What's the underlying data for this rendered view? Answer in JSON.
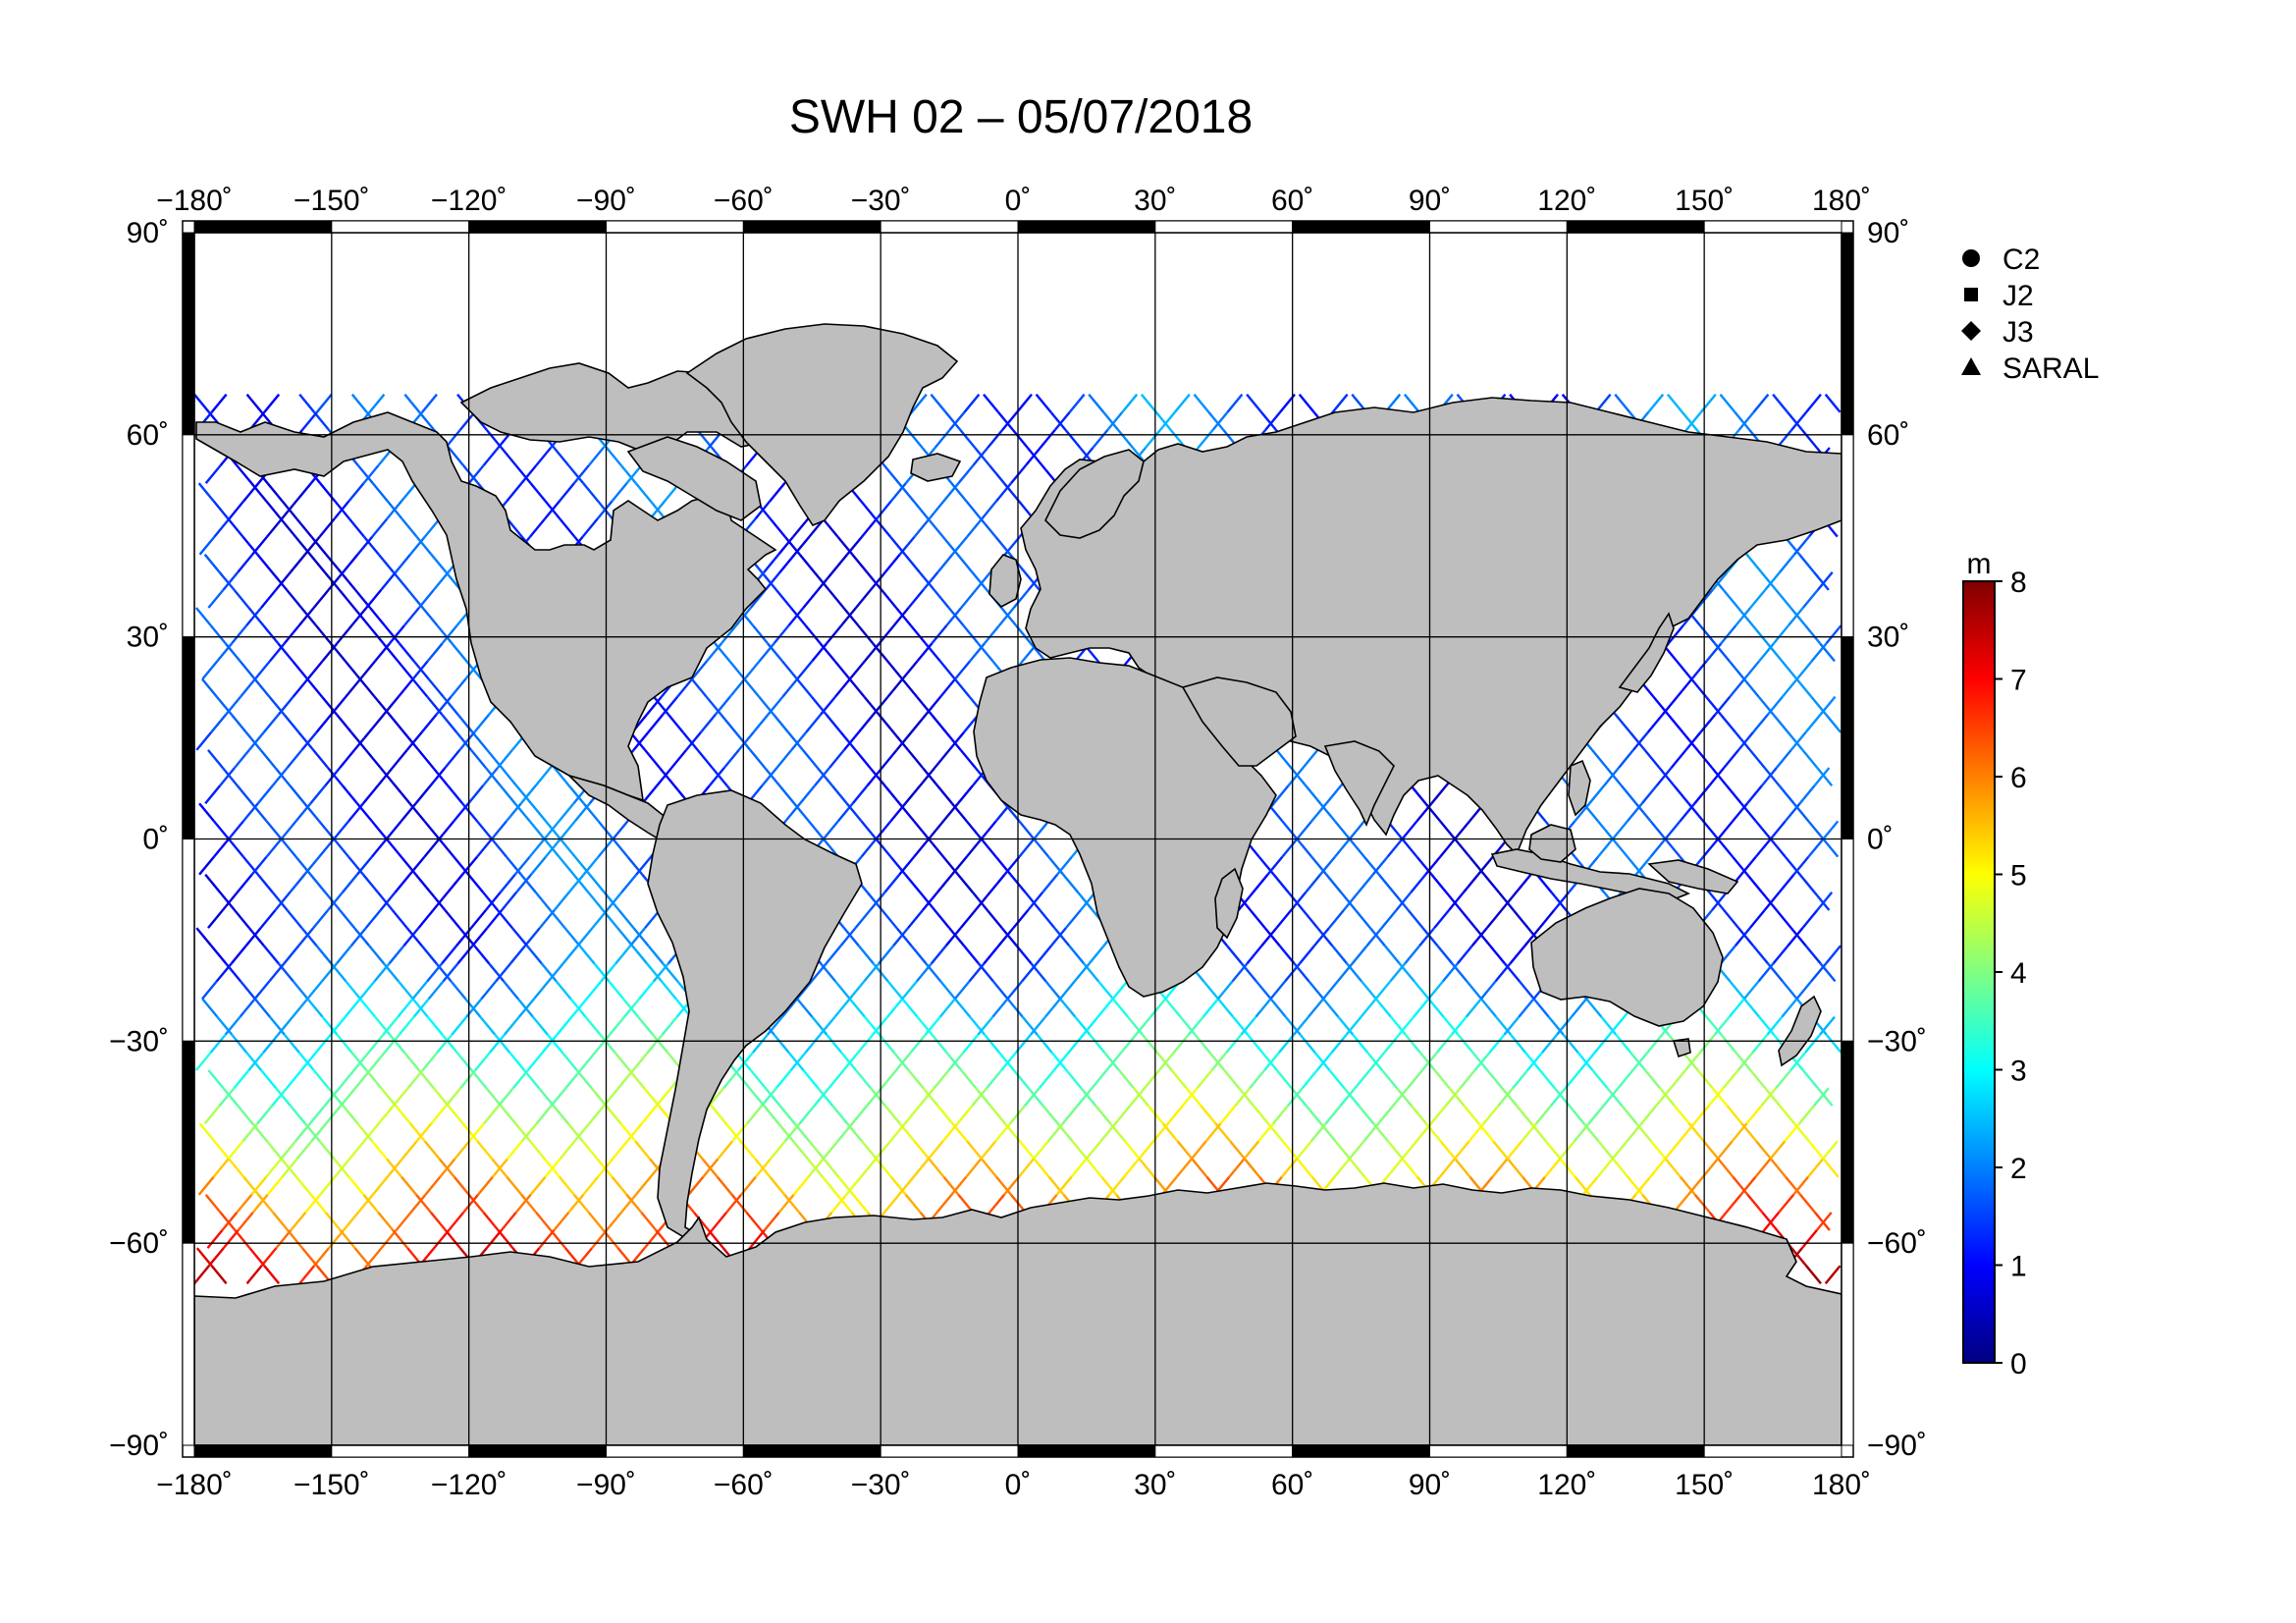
{
  "title": "SWH 02 – 05/07/2018",
  "map": {
    "projection": "equirectangular",
    "lon_range": [
      -180,
      180
    ],
    "lat_range": [
      -90,
      90
    ],
    "lon_ticks": [
      -180,
      -150,
      -120,
      -90,
      -60,
      -30,
      0,
      30,
      60,
      90,
      120,
      150,
      180
    ],
    "lat_ticks": [
      90,
      60,
      30,
      0,
      -30,
      -60,
      -90
    ],
    "lon_labels": [
      "−180˚",
      "−150˚",
      "−120˚",
      "−90˚",
      "−60˚",
      "−30˚",
      "0˚",
      "30˚",
      "60˚",
      "90˚",
      "120˚",
      "150˚",
      "180˚"
    ],
    "lat_labels": [
      "90˚",
      "60˚",
      "30˚",
      "0˚",
      "−30˚",
      "−60˚",
      "−90˚"
    ],
    "grid": true,
    "land_color": "#bebebe",
    "ocean_color": "#ffffff",
    "coverage_lat_range": [
      -66,
      66
    ]
  },
  "legend": {
    "placement": "top-right",
    "items": [
      {
        "symbol": "circle",
        "label": "C2"
      },
      {
        "symbol": "square",
        "label": "J2"
      },
      {
        "symbol": "diamond",
        "label": "J3"
      },
      {
        "symbol": "triangle",
        "label": "SARAL"
      }
    ]
  },
  "colorbar": {
    "unit": "m",
    "min": 0,
    "max": 8,
    "ticks": [
      "0",
      "1",
      "2",
      "3",
      "4",
      "5",
      "6",
      "7",
      "8"
    ],
    "colormap": [
      "#000080",
      "#0000ff",
      "#0080ff",
      "#00ffff",
      "#80ff80",
      "#ffff00",
      "#ff8000",
      "#ff0000",
      "#800000"
    ]
  }
}
